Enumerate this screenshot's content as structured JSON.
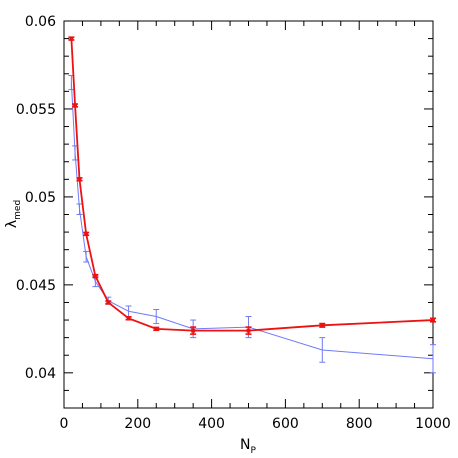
{
  "chart_data": {
    "type": "line",
    "xlabel_main": "N",
    "xlabel_sub": "P",
    "ylabel_main": "λ",
    "ylabel_sub": "med",
    "xlim": [
      0,
      1000
    ],
    "ylim": [
      0.038,
      0.06
    ],
    "xticks": [
      0,
      200,
      400,
      600,
      800,
      1000
    ],
    "xtick_labels": [
      "0",
      "200",
      "400",
      "600",
      "800",
      "1000"
    ],
    "yticks": [
      0.04,
      0.045,
      0.05,
      0.055,
      0.06
    ],
    "ytick_labels": [
      "0.04",
      "0.045",
      "0.05",
      "0.055",
      "0.06"
    ],
    "grid": false,
    "series": [
      {
        "color": "#ee1111",
        "points": [
          {
            "x": 20,
            "y": 0.059,
            "err": 8e-05
          },
          {
            "x": 30,
            "y": 0.0552,
            "err": 8e-05
          },
          {
            "x": 42,
            "y": 0.051,
            "err": 8e-05
          },
          {
            "x": 60,
            "y": 0.0479,
            "err": 8e-05
          },
          {
            "x": 85,
            "y": 0.0455,
            "err": 8e-05
          },
          {
            "x": 120,
            "y": 0.044,
            "err": 8e-05
          },
          {
            "x": 175,
            "y": 0.0431,
            "err": 8e-05
          },
          {
            "x": 250,
            "y": 0.0425,
            "err": 8e-05
          },
          {
            "x": 350,
            "y": 0.0424,
            "err": 0.0002
          },
          {
            "x": 500,
            "y": 0.0424,
            "err": 0.0002
          },
          {
            "x": 700,
            "y": 0.0427,
            "err": 0.0001
          },
          {
            "x": 1000,
            "y": 0.043,
            "err": 0.0001
          }
        ]
      },
      {
        "color": "#6f7bf7",
        "points": [
          {
            "x": 20,
            "y": 0.0565,
            "err": 0.0004
          },
          {
            "x": 30,
            "y": 0.0525,
            "err": 0.0004
          },
          {
            "x": 42,
            "y": 0.0493,
            "err": 0.0003
          },
          {
            "x": 60,
            "y": 0.0466,
            "err": 0.0003
          },
          {
            "x": 85,
            "y": 0.0452,
            "err": 0.0003
          },
          {
            "x": 120,
            "y": 0.0441,
            "err": 0.0002
          },
          {
            "x": 175,
            "y": 0.0435,
            "err": 0.0003
          },
          {
            "x": 250,
            "y": 0.0432,
            "err": 0.0004
          },
          {
            "x": 350,
            "y": 0.0425,
            "err": 0.0005
          },
          {
            "x": 500,
            "y": 0.0426,
            "err": 0.0006
          },
          {
            "x": 700,
            "y": 0.0413,
            "err": 0.0007
          },
          {
            "x": 1000,
            "y": 0.0408,
            "err": 0.0008
          }
        ]
      }
    ]
  }
}
